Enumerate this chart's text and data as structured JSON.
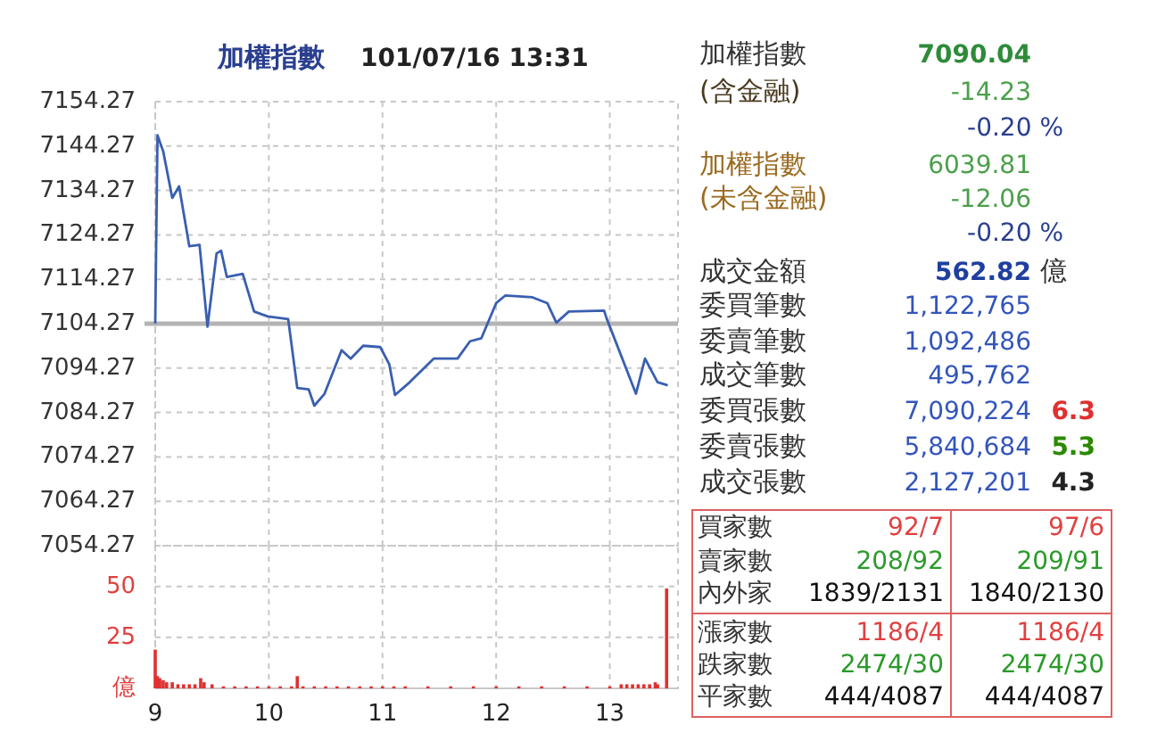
{
  "chart_data": [
    {
      "type": "line",
      "title": "加權指數",
      "subtitle": "101/07/16 13:31",
      "tick_labels": "y",
      "grid": true,
      "xlim": [
        9,
        13.6
      ],
      "xticks": [
        9,
        10,
        11,
        12,
        13
      ],
      "ylim": [
        7054.27,
        7154.27
      ],
      "yticks": [
        7054.27,
        7064.27,
        7074.27,
        7084.27,
        7094.27,
        7104.27,
        7114.27,
        7124.27,
        7134.27,
        7144.27,
        7154.27
      ],
      "ref_lines": [
        {
          "axis": "y",
          "value": 7104.27,
          "color": "#b4b4b4"
        }
      ],
      "series": [
        {
          "color": "#3a5fb0",
          "x": [
            9.0,
            9.02,
            9.07,
            9.15,
            9.21,
            9.3,
            9.39,
            9.46,
            9.54,
            9.58,
            9.63,
            9.77,
            9.87,
            9.99,
            10.17,
            10.25,
            10.35,
            10.4,
            10.49,
            10.64,
            10.72,
            10.83,
            10.98,
            11.06,
            11.11,
            11.24,
            11.45,
            11.66,
            11.77,
            11.87,
            12.0,
            12.08,
            12.32,
            12.45,
            12.53,
            12.64,
            12.95,
            12.97,
            13.13,
            13.23,
            13.31,
            13.42,
            13.51
          ],
          "values": [
            7104.3,
            7146.7,
            7143.1,
            7132.6,
            7135.2,
            7121.7,
            7122.0,
            7103.6,
            7120.1,
            7120.7,
            7114.8,
            7115.5,
            7107.0,
            7105.9,
            7105.3,
            7089.8,
            7089.5,
            7085.8,
            7088.5,
            7098.3,
            7096.4,
            7099.3,
            7099.0,
            7095.1,
            7088.2,
            7091.1,
            7096.4,
            7096.4,
            7100.3,
            7101.0,
            7108.9,
            7110.6,
            7110.2,
            7108.9,
            7104.5,
            7107.0,
            7107.2,
            7105.6,
            7095.1,
            7088.5,
            7096.4,
            7091.1,
            7090.4
          ]
        }
      ]
    },
    {
      "type": "bar",
      "grid": true,
      "xlim": [
        9,
        13.6
      ],
      "xticks": [
        9,
        10,
        11,
        12,
        13
      ],
      "ylim": [
        0,
        70
      ],
      "yticks": [
        {
          "value": 0,
          "label": "億"
        },
        25,
        50
      ],
      "series": [
        {
          "color": "#e03030",
          "x": [
            9.0,
            9.02,
            9.04,
            9.07,
            9.1,
            9.15,
            9.2,
            9.25,
            9.3,
            9.35,
            9.4,
            9.43,
            9.5,
            9.6,
            9.7,
            9.8,
            9.9,
            10.0,
            10.1,
            10.2,
            10.25,
            10.3,
            10.4,
            10.5,
            10.6,
            10.7,
            10.8,
            10.9,
            11.0,
            11.1,
            11.2,
            11.4,
            11.6,
            11.8,
            12.0,
            12.2,
            12.4,
            12.6,
            12.8,
            13.0,
            13.1,
            13.15,
            13.2,
            13.25,
            13.3,
            13.35,
            13.4,
            13.42,
            13.5
          ],
          "values": [
            19,
            6,
            5,
            4,
            3,
            3,
            2,
            2,
            2,
            2,
            5,
            3,
            2,
            1,
            1,
            1,
            1,
            1,
            1,
            1,
            6,
            1,
            1,
            1,
            1,
            1,
            1,
            1,
            1,
            1,
            1,
            1,
            1,
            1,
            1,
            1,
            1,
            1,
            1,
            1,
            2,
            2,
            2,
            2,
            2,
            2,
            3,
            2,
            49
          ]
        }
      ]
    },
    {
      "type": "other",
      "annotations": [
        "加權指數",
        "7090.04",
        "(含金融)",
        "-14.23",
        "-0.20 %",
        "加權指數",
        "6039.81",
        "(未含金融)",
        "-12.06",
        "-0.20 %",
        "成交金額",
        "562.82",
        "億",
        "委買筆數",
        "1,122,765",
        "委賣筆數",
        "1,092,486",
        "成交筆數",
        "495,762",
        "委買張數",
        "7,090,224",
        "6.3",
        "委賣張數",
        "5,840,684",
        "5.3",
        "成交張數",
        "2,127,201",
        "4.3",
        "買家數",
        "92/7",
        "97/6",
        "賣家數",
        "208/92",
        "209/91",
        "內外家",
        "1839/2131",
        "1840/2130",
        "漲家數",
        "1186/4",
        "1186/4",
        "跌家數",
        "2474/30",
        "2474/30",
        "平家數",
        "444/4087",
        "444/4087"
      ]
    }
  ]
}
